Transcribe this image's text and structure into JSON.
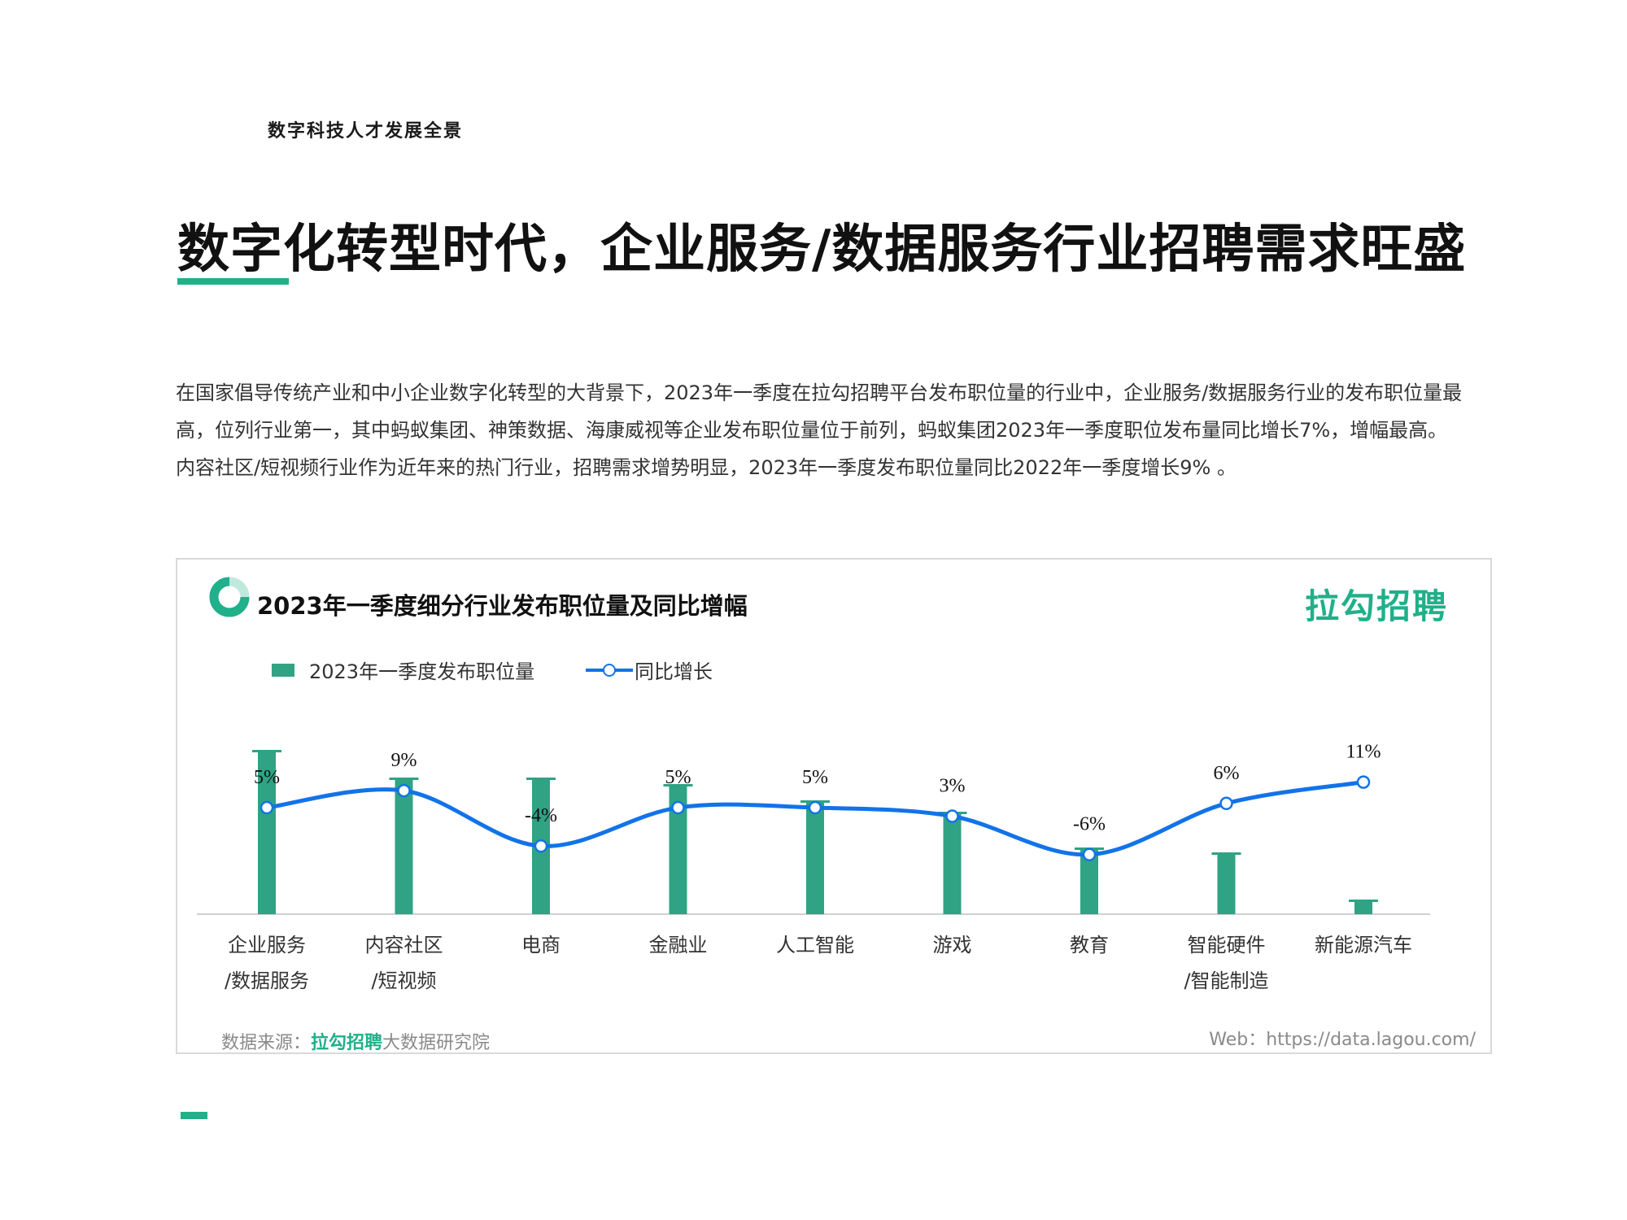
{
  "header": {
    "label": "数字科技人才发展全景"
  },
  "page": {
    "title": "数字化转型时代，企业服务/数据服务行业招聘需求旺盛"
  },
  "body": {
    "paragraph1": "在国家倡导传统产业和中小企业数字化转型的大背景下，2023年一季度在拉勾招聘平台发布职位量的行业中，企业服务/数据服务行业的发布职位量最高，位列行业第一，其中蚂蚁集团、神策数据、海康威视等企业发布职位量位于前列，蚂蚁集团2023年一季度职位发布量同比增长7%，增幅最高。",
    "paragraph2": "内容社区/短视频行业作为近年来的热门行业，招聘需求增势明显，2023年一季度发布职位量同比2022年一季度增长9% 。"
  },
  "chart_card": {
    "brand": "拉勾招聘",
    "source_prefix": "数据来源：",
    "source_brand": "拉勾招聘",
    "source_suffix": "大数据研究院",
    "web": "Web：https://data.lagou.com/"
  },
  "colors": {
    "accent": "#20b08a",
    "bar": "#2fa384",
    "line": "#1273e8"
  },
  "chart_data": {
    "type": "bar",
    "title": "2023年一季度细分行业发布职位量及同比增幅",
    "categories": [
      [
        "企业服务",
        "/数据服务"
      ],
      [
        "内容社区",
        "/短视频"
      ],
      [
        "电商"
      ],
      [
        "金融业"
      ],
      [
        "人工智能"
      ],
      [
        "游戏"
      ],
      [
        "教育"
      ],
      [
        "智能硬件",
        "/智能制造"
      ],
      [
        "新能源汽车"
      ]
    ],
    "series": [
      {
        "name": "2023年一季度发布职位量",
        "type": "bar",
        "values": [
          100,
          83,
          83,
          79,
          69,
          62,
          40,
          37,
          8
        ]
      },
      {
        "name": "同比增长",
        "type": "line",
        "values": [
          5,
          9,
          -4,
          5,
          5,
          3,
          -6,
          6,
          11
        ],
        "labels": [
          "5%",
          "9%",
          "-4%",
          "5%",
          "5%",
          "3%",
          "-6%",
          "6%",
          "11%"
        ]
      }
    ],
    "bar_axis_range": [
      0,
      100
    ],
    "line_axis_range": [
      -20,
      22
    ],
    "legend_position": "top-left",
    "grid": false
  }
}
